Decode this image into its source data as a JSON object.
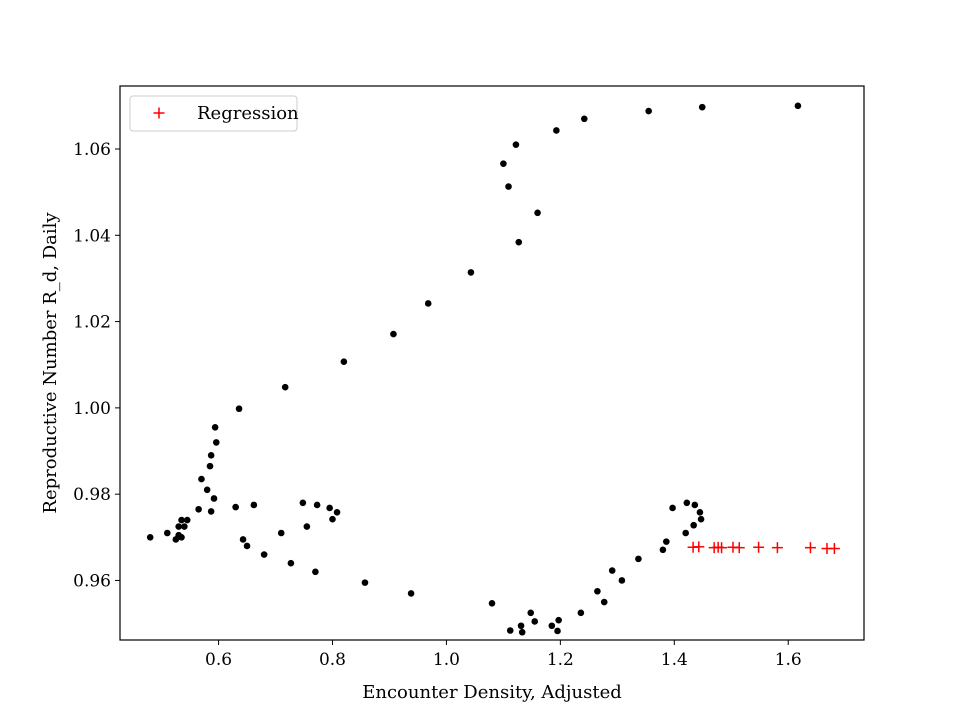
{
  "chart_data": {
    "type": "scatter",
    "xlabel": "Encounter Density, Adjusted",
    "ylabel": "Reproductive Number R_d, Daily",
    "xlim": [
      0.427,
      1.733
    ],
    "ylim": [
      0.9462,
      1.0746
    ],
    "xticks": [
      0.6,
      0.8,
      1.0,
      1.2,
      1.4,
      1.6
    ],
    "yticks": [
      0.96,
      0.98,
      1.0,
      1.02,
      1.04,
      1.06
    ],
    "grid": false,
    "legend": {
      "position": "top-left",
      "entries": [
        "Regression"
      ]
    },
    "series": [
      {
        "marker": "dot",
        "color": "#000000",
        "points": [
          [
            0.48,
            0.97
          ],
          [
            0.51,
            0.971
          ],
          [
            0.525,
            0.9695
          ],
          [
            0.53,
            0.9705
          ],
          [
            0.53,
            0.9725
          ],
          [
            0.535,
            0.974
          ],
          [
            0.535,
            0.97
          ],
          [
            0.54,
            0.9725
          ],
          [
            0.545,
            0.974
          ],
          [
            0.565,
            0.9765
          ],
          [
            0.57,
            0.9835
          ],
          [
            0.58,
            0.981
          ],
          [
            0.585,
            0.9865
          ],
          [
            0.587,
            0.989
          ],
          [
            0.587,
            0.976
          ],
          [
            0.592,
            0.979
          ],
          [
            0.594,
            0.9955
          ],
          [
            0.596,
            0.992
          ],
          [
            0.63,
            0.977
          ],
          [
            0.636,
            0.9998
          ],
          [
            0.643,
            0.9695
          ],
          [
            0.65,
            0.968
          ],
          [
            0.662,
            0.9775
          ],
          [
            0.68,
            0.966
          ],
          [
            0.71,
            0.971
          ],
          [
            0.717,
            1.0048
          ],
          [
            0.727,
            0.964
          ],
          [
            0.748,
            0.978
          ],
          [
            0.755,
            0.9725
          ],
          [
            0.77,
            0.962
          ],
          [
            0.773,
            0.9775
          ],
          [
            0.795,
            0.9768
          ],
          [
            0.8,
            0.9742
          ],
          [
            0.808,
            0.9758
          ],
          [
            0.82,
            1.0107
          ],
          [
            0.857,
            0.9595
          ],
          [
            0.907,
            1.0171
          ],
          [
            0.938,
            0.957
          ],
          [
            0.968,
            1.0242
          ],
          [
            1.043,
            1.0314
          ],
          [
            1.08,
            0.9547
          ],
          [
            1.1,
            1.0566
          ],
          [
            1.109,
            1.0513
          ],
          [
            1.112,
            0.9484
          ],
          [
            1.122,
            1.061
          ],
          [
            1.127,
            1.0384
          ],
          [
            1.131,
            0.9495
          ],
          [
            1.133,
            0.948
          ],
          [
            1.148,
            0.9525
          ],
          [
            1.155,
            0.9505
          ],
          [
            1.16,
            1.0452
          ],
          [
            1.185,
            0.9495
          ],
          [
            1.193,
            1.0643
          ],
          [
            1.195,
            0.9483
          ],
          [
            1.197,
            0.9508
          ],
          [
            1.236,
            0.9525
          ],
          [
            1.242,
            1.067
          ],
          [
            1.265,
            0.9575
          ],
          [
            1.277,
            0.955
          ],
          [
            1.291,
            0.9623
          ],
          [
            1.308,
            0.96
          ],
          [
            1.337,
            0.965
          ],
          [
            1.355,
            1.0688
          ],
          [
            1.38,
            0.9671
          ],
          [
            1.386,
            0.969
          ],
          [
            1.397,
            0.9768
          ],
          [
            1.42,
            0.971
          ],
          [
            1.422,
            0.978
          ],
          [
            1.434,
            0.9728
          ],
          [
            1.436,
            0.9775
          ],
          [
            1.445,
            0.9758
          ],
          [
            1.447,
            0.9742
          ],
          [
            1.449,
            1.0697
          ],
          [
            1.617,
            1.07
          ]
        ]
      },
      {
        "name": "Regression",
        "marker": "plus",
        "color": "#ff0000",
        "points": [
          [
            1.433,
            0.9677
          ],
          [
            1.443,
            0.9678
          ],
          [
            1.47,
            0.9676
          ],
          [
            1.477,
            0.9677
          ],
          [
            1.483,
            0.9676
          ],
          [
            1.503,
            0.9677
          ],
          [
            1.514,
            0.9676
          ],
          [
            1.548,
            0.9677
          ],
          [
            1.581,
            0.9676
          ],
          [
            1.639,
            0.9676
          ],
          [
            1.668,
            0.9674
          ],
          [
            1.681,
            0.9674
          ]
        ]
      }
    ]
  }
}
